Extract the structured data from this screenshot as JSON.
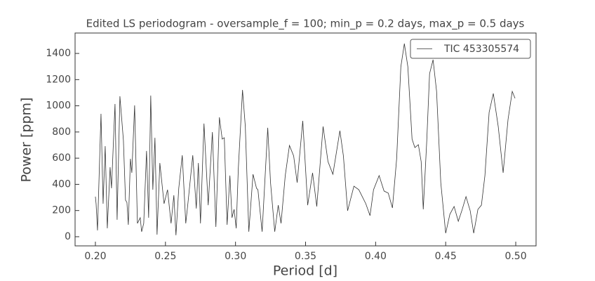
{
  "chart_data": {
    "type": "line",
    "title": "Edited LS periodogram - oversample_f = 100; min_p = 0.2 days, max_p = 0.5 days",
    "x_label": "Period [d]",
    "y_label": "Power [ppm]",
    "x": [
      0.2,
      0.2005,
      0.2015,
      0.204,
      0.2055,
      0.207,
      0.2085,
      0.2105,
      0.2115,
      0.214,
      0.2155,
      0.2175,
      0.22,
      0.2215,
      0.2225,
      0.2235,
      0.225,
      0.226,
      0.228,
      0.23,
      0.232,
      0.233,
      0.2345,
      0.2365,
      0.238,
      0.2395,
      0.241,
      0.2425,
      0.244,
      0.246,
      0.249,
      0.2515,
      0.254,
      0.256,
      0.2575,
      0.2595,
      0.262,
      0.2645,
      0.266,
      0.2695,
      0.272,
      0.2735,
      0.275,
      0.2775,
      0.2805,
      0.2835,
      0.286,
      0.2885,
      0.2905,
      0.292,
      0.294,
      0.296,
      0.2975,
      0.299,
      0.3005,
      0.302,
      0.305,
      0.307,
      0.3095,
      0.3125,
      0.315,
      0.316,
      0.319,
      0.323,
      0.325,
      0.328,
      0.3305,
      0.3325,
      0.3355,
      0.3385,
      0.3415,
      0.344,
      0.348,
      0.3515,
      0.355,
      0.358,
      0.3625,
      0.366,
      0.3695,
      0.3745,
      0.377,
      0.38,
      0.3845,
      0.388,
      0.393,
      0.396,
      0.3985,
      0.4025,
      0.406,
      0.409,
      0.412,
      0.415,
      0.418,
      0.4205,
      0.423,
      0.426,
      0.428,
      0.4305,
      0.4325,
      0.434,
      0.4365,
      0.4385,
      0.441,
      0.4435,
      0.4465,
      0.45,
      0.453,
      0.456,
      0.459,
      0.4615,
      0.4645,
      0.4675,
      0.47,
      0.473,
      0.4755,
      0.478,
      0.481,
      0.484,
      0.4875,
      0.491,
      0.4945,
      0.4975,
      0.4995
    ],
    "series": [
      {
        "name": "TIC 453305574",
        "color": "#333333",
        "values": [
          306,
          252,
          48,
          939,
          252,
          692,
          64,
          531,
          370,
          1014,
          129,
          1073,
          735,
          279,
          263,
          91,
          595,
          488,
          1003,
          102,
          145,
          38,
          102,
          655,
          145,
          1078,
          359,
          756,
          16,
          563,
          252,
          359,
          102,
          317,
          11,
          370,
          622,
          102,
          252,
          622,
          215,
          563,
          102,
          864,
          241,
          799,
          75,
          912,
          746,
          756,
          91,
          467,
          145,
          209,
          64,
          520,
          1121,
          842,
          38,
          477,
          370,
          359,
          38,
          832,
          413,
          38,
          241,
          102,
          467,
          697,
          617,
          413,
          885,
          241,
          488,
          231,
          842,
          574,
          477,
          810,
          617,
          198,
          386,
          359,
          252,
          161,
          359,
          467,
          349,
          333,
          220,
          595,
          1298,
          1475,
          1298,
          746,
          681,
          703,
          574,
          209,
          735,
          1245,
          1352,
          1110,
          413,
          27,
          172,
          231,
          118,
          198,
          306,
          198,
          27,
          209,
          241,
          467,
          950,
          1094,
          842,
          488,
          896,
          1110,
          1057
        ]
      }
    ],
    "xlim": [
      0.1855,
      0.5145
    ],
    "ylim": [
      -70,
      1556
    ],
    "xticks": [
      {
        "value": 0.2,
        "label": "0.20"
      },
      0.25,
      {
        "value": 0.3,
        "label": "0.30"
      },
      0.35,
      {
        "value": 0.4,
        "label": "0.40"
      },
      0.45,
      {
        "value": 0.5,
        "label": "0.50"
      }
    ],
    "yticks": [
      0,
      200,
      400,
      600,
      800,
      1000,
      1200,
      1400
    ],
    "legend": "upper right"
  }
}
